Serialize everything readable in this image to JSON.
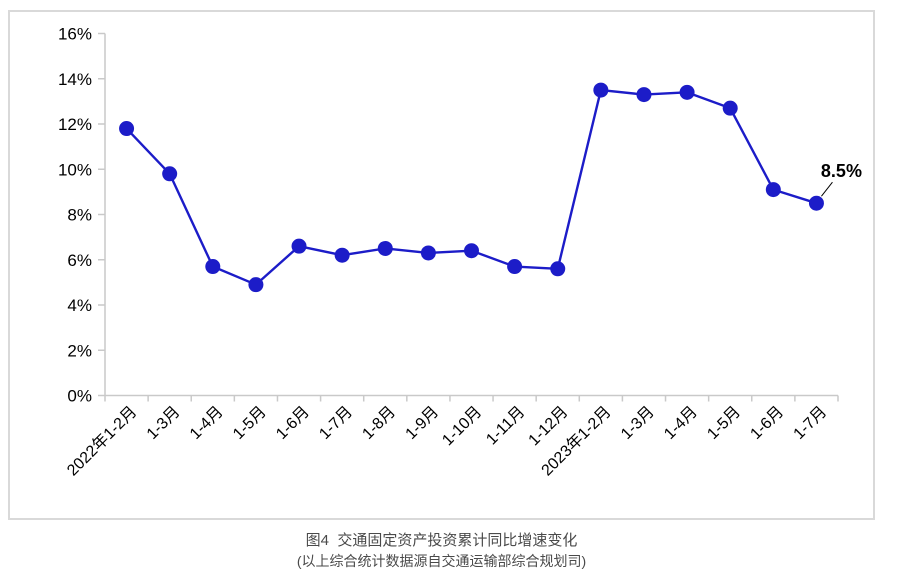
{
  "chart_data": {
    "type": "line",
    "categories": [
      "2022年1-2月",
      "1-3月",
      "1-4月",
      "1-5月",
      "1-6月",
      "1-7月",
      "1-8月",
      "1-9月",
      "1-10月",
      "1-11月",
      "1-12月",
      "2023年1-2月",
      "1-3月",
      "1-4月",
      "1-5月",
      "1-6月",
      "1-7月"
    ],
    "values": [
      11.8,
      9.8,
      5.7,
      4.9,
      6.6,
      6.2,
      6.5,
      6.3,
      6.4,
      5.7,
      5.6,
      13.5,
      13.3,
      13.4,
      12.7,
      9.1,
      8.5
    ],
    "title": "图4  交通固定资产投资累计同比增速变化",
    "subtitle": "(以上综合统计数据源自交通运输部综合规划司)",
    "xlabel": "",
    "ylabel": "",
    "ylim": [
      0,
      16
    ],
    "ytick_step": 2,
    "ytick_suffix": "%",
    "grid": "off",
    "legend": "none",
    "annotation": {
      "text": "8.5%",
      "target_index": 16
    },
    "colors": {
      "line": "#1c1cc8",
      "marker": "#1c1cc8",
      "axis": "#c9c9c9",
      "tick_label": "#000000",
      "annotation_text": "#000000",
      "frame_border": "#d9d9d9",
      "caption_text": "#4a4a4a",
      "background": "#ffffff"
    }
  },
  "caption": {
    "line1": "图4  交通固定资产投资累计同比增速变化",
    "line2": "(以上综合统计数据源自交通运输部综合规划司)"
  }
}
